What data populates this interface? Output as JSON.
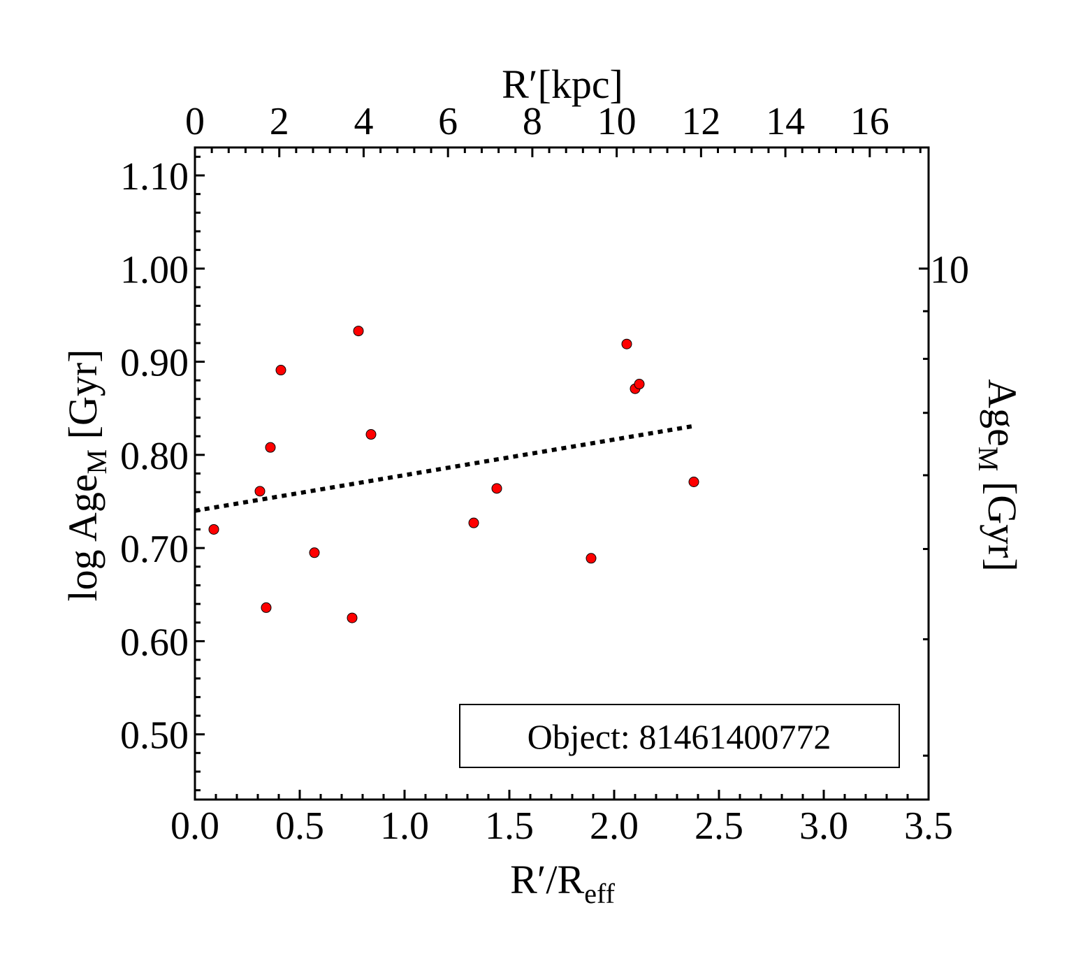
{
  "chart_data": {
    "type": "scatter",
    "title": "",
    "xlabel": {
      "main": "R′/R",
      "sub": "eff"
    },
    "x2label": "R′[kpc]",
    "ylabel": {
      "pre": "log Age",
      "sub": "M",
      "post": " [Gyr]"
    },
    "y2label": {
      "pre": "Age",
      "sub": "M",
      "post": " [Gyr]"
    },
    "xlim": [
      0.0,
      3.5
    ],
    "ylim": [
      0.43,
      1.13
    ],
    "x_ticks": [
      0.0,
      0.5,
      1.0,
      1.5,
      2.0,
      2.5,
      3.0,
      3.5
    ],
    "x_tick_labels": [
      "0.0",
      "0.5",
      "1.0",
      "1.5",
      "2.0",
      "2.5",
      "3.0",
      "3.5"
    ],
    "y_ticks": [
      0.5,
      0.6,
      0.7,
      0.8,
      0.9,
      1.0,
      1.1
    ],
    "y_tick_labels": [
      "0.50",
      "0.60",
      "0.70",
      "0.80",
      "0.90",
      "1.00",
      "1.10"
    ],
    "x2_ticks": [
      0,
      2,
      4,
      6,
      8,
      10,
      12,
      14,
      16
    ],
    "x2_tick_labels": [
      "0",
      "2",
      "4",
      "6",
      "8",
      "10",
      "12",
      "14",
      "16"
    ],
    "x2_per_x": 4.97,
    "y2_scale": "log",
    "y2_major": [
      10
    ],
    "y2_major_labels": [
      "10"
    ],
    "y2_minor": [
      3,
      4,
      5,
      6,
      7,
      8,
      9
    ],
    "grid": false,
    "annotation": "Object: 81461400772",
    "series": [
      {
        "marker_color": "#ff0000",
        "points": [
          {
            "x": 0.09,
            "y": 0.72
          },
          {
            "x": 0.31,
            "y": 0.761
          },
          {
            "x": 0.34,
            "y": 0.636
          },
          {
            "x": 0.36,
            "y": 0.808
          },
          {
            "x": 0.41,
            "y": 0.891
          },
          {
            "x": 0.57,
            "y": 0.695
          },
          {
            "x": 0.75,
            "y": 0.625
          },
          {
            "x": 0.78,
            "y": 0.933
          },
          {
            "x": 0.84,
            "y": 0.822
          },
          {
            "x": 1.33,
            "y": 0.727
          },
          {
            "x": 1.44,
            "y": 0.764
          },
          {
            "x": 1.89,
            "y": 0.689
          },
          {
            "x": 2.06,
            "y": 0.919
          },
          {
            "x": 2.1,
            "y": 0.871
          },
          {
            "x": 2.12,
            "y": 0.876
          },
          {
            "x": 2.38,
            "y": 0.771
          }
        ]
      }
    ],
    "fit_line": {
      "style": "dotted",
      "x": [
        0.0,
        2.38
      ],
      "y": [
        0.74,
        0.831
      ]
    }
  }
}
